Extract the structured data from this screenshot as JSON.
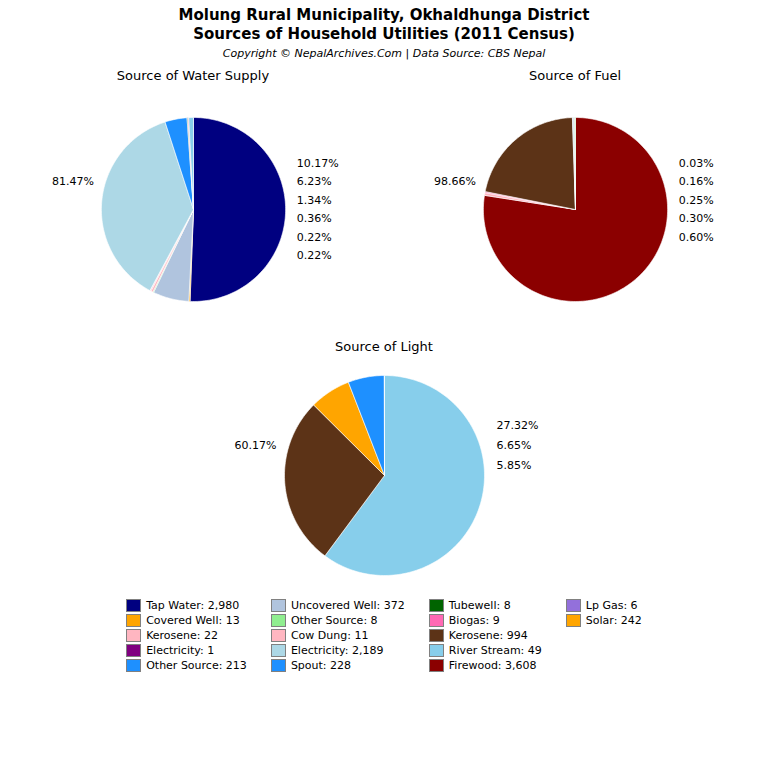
{
  "title": "Molung Rural Municipality, Okhaldhunga District",
  "subtitle": "Sources of Household Utilities (2011 Census)",
  "annotations": [
    "Copyright © NepalArchives.Com | Data Source: CBS Nepal"
  ],
  "legend_entries": [
    {
      "name": "Tap Water: 2,980",
      "color": "#000080"
    },
    {
      "name": "Covered Well: 13",
      "color": "#FFA500"
    },
    {
      "name": "Kerosene: 22",
      "color": "#FFB6C1"
    },
    {
      "name": "Electricity: 1",
      "color": "#800080"
    },
    {
      "name": "Other Source: 213",
      "color": "#1E90FF"
    },
    {
      "name": "Uncovered Well: 372",
      "color": "#b0c4de"
    },
    {
      "name": "Other Source: 8",
      "color": "#90EE90"
    },
    {
      "name": "Cow Dung: 11",
      "color": "#FFB6C1"
    },
    {
      "name": "Electricity: 2,189",
      "color": "#add8e6"
    },
    {
      "name": "Spout: 228",
      "color": "#1E90FF"
    },
    {
      "name": "Tubewell: 8",
      "color": "#006400"
    },
    {
      "name": "Biogas: 9",
      "color": "#FF69B4"
    },
    {
      "name": "Kerosene: 994",
      "color": "#5C3317"
    },
    {
      "name": "River Stream: 49",
      "color": "#87CEEB"
    },
    {
      "name": "Firewood: 3,608",
      "color": "#8B0000"
    },
    {
      "name": "Lp Gas: 6",
      "color": "#9370DB"
    },
    {
      "name": "Solar: 242",
      "color": "#FFA500"
    }
  ],
  "chart_data": [
    {
      "type": "pie",
      "title": "Source of Water Supply",
      "values": [
        2980,
        13,
        372,
        8,
        22,
        11,
        1,
        2189,
        228,
        8,
        9,
        49
      ],
      "colors": [
        "#000080",
        "#FFA500",
        "#b0c4de",
        "#90EE90",
        "#FFB6C1",
        "#FFB6C1",
        "#800080",
        "#add8e6",
        "#1E90FF",
        "#006400",
        "#FF69B4",
        "#87CEEB"
      ],
      "annotations": [
        "81.47%",
        "10.17%",
        "6.23%",
        "1.34%",
        "0.36%",
        "0.22%",
        "0.22%"
      ]
    },
    {
      "type": "pie",
      "title": "Source of Fuel",
      "values": [
        3608,
        22,
        9,
        994,
        11,
        6,
        8
      ],
      "colors": [
        "#8B0000",
        "#FFB6C1",
        "#FF69B4",
        "#5C3317",
        "#add8e6",
        "#9370DB",
        "#90EE90"
      ],
      "annotations": [
        "98.66%",
        "0.03%",
        "0.16%",
        "0.25%",
        "0.30%",
        "0.60%"
      ]
    },
    {
      "type": "pie",
      "title": "Source of Light",
      "values": [
        2189,
        994,
        242,
        213,
        1
      ],
      "colors": [
        "#87CEEB",
        "#5C3317",
        "#FFA500",
        "#1E90FF",
        "#add8e6"
      ],
      "annotations": [
        "60.17%",
        "27.32%",
        "6.65%",
        "5.85%"
      ]
    }
  ]
}
